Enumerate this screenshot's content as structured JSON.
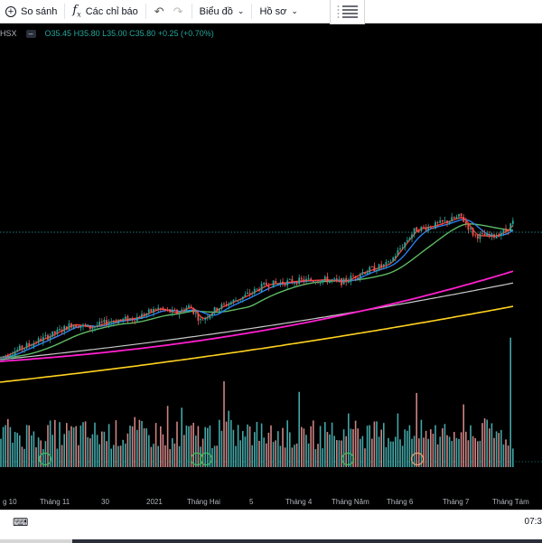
{
  "toolbar": {
    "compare_label": "So sánh",
    "indicators_label": "Các chỉ báo",
    "chart_type_label": "Biểu đồ",
    "profile_label": "Hồ sơ",
    "icons": [
      "plus-circle-icon",
      "fx-icon",
      "undo-icon",
      "redo-icon",
      "chevron-down-icon",
      "drawing-list-icon"
    ]
  },
  "legend": {
    "symbol": "HSX",
    "open": "O35.45",
    "high": "H35.80",
    "low": "L35.00",
    "close": "C35.80",
    "change": "+0.25 (+0.70%)"
  },
  "colors": {
    "up": "#26a69a",
    "down": "#ef5350",
    "ma_red": "#ff3b30",
    "ma_blue": "#2e86ff",
    "ma_green": "#5dbb63",
    "ma_magenta": "#ff1fce",
    "ma_gray": "#c8c8c8",
    "ma_yellow": "#ffd21f"
  },
  "time_axis": [
    "g 10",
    "Tháng 11",
    "30",
    "2021",
    "Tháng Hai",
    "5",
    "Tháng 4",
    "Tháng Năm",
    "Tháng 6",
    "Tháng 7",
    "Tháng Tám"
  ],
  "bottom": {
    "time": "07:3"
  },
  "chart_data": {
    "type": "candlestick",
    "last_close": 35.8,
    "trend_anchors": [
      [
        0,
        24.5
      ],
      [
        30,
        25.5
      ],
      [
        60,
        26.5
      ],
      [
        80,
        27.3
      ],
      [
        100,
        27.0
      ],
      [
        120,
        27.5
      ],
      [
        150,
        27.8
      ],
      [
        175,
        28.6
      ],
      [
        195,
        28.2
      ],
      [
        210,
        28.8
      ],
      [
        222,
        27.6
      ],
      [
        240,
        28.6
      ],
      [
        270,
        29.6
      ],
      [
        295,
        30.6
      ],
      [
        330,
        30.9
      ],
      [
        360,
        31.0
      ],
      [
        380,
        30.8
      ],
      [
        400,
        31.6
      ],
      [
        430,
        32.3
      ],
      [
        445,
        33.8
      ],
      [
        460,
        35.2
      ],
      [
        480,
        35.5
      ],
      [
        500,
        36.0
      ],
      [
        510,
        36.3
      ],
      [
        525,
        34.7
      ],
      [
        545,
        34.6
      ],
      [
        560,
        35.1
      ],
      [
        568,
        35.8
      ]
    ],
    "volume_spikes": [
      [
        248,
        0.72
      ],
      [
        386,
        0.45
      ],
      [
        440,
        0.45
      ],
      [
        462,
        0.42
      ],
      [
        565,
        0.95
      ],
      [
        520,
        0.35
      ],
      [
        300,
        0.35
      ]
    ],
    "moving_averages": [
      "ma_red",
      "ma_blue",
      "ma_green",
      "ma_magenta",
      "ma_gray",
      "ma_yellow"
    ]
  }
}
